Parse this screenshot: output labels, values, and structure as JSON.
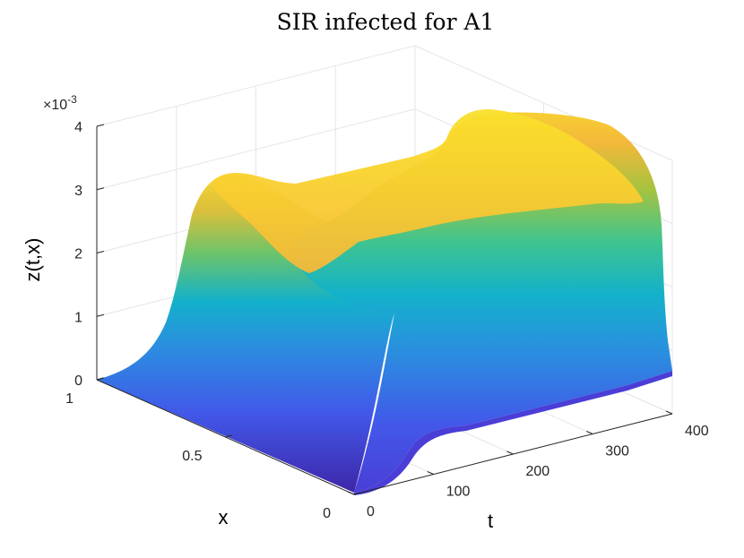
{
  "chart_data": {
    "type": "surface",
    "title": "SIR infected for A1",
    "xlabel": "t",
    "ylabel": "x",
    "zlabel": "z(t,x)",
    "z_exponent": "×10",
    "z_exponent_power": "-3",
    "t_range": [
      0,
      400
    ],
    "x_range": [
      0,
      1
    ],
    "z_range": [
      0,
      0.004
    ],
    "t_ticks": [
      "0",
      "100",
      "200",
      "300",
      "400"
    ],
    "x_ticks": [
      "0",
      "0.5",
      "1"
    ],
    "z_ticks": [
      "0",
      "1",
      "2",
      "3",
      "4"
    ],
    "z_tick_values": [
      0,
      0.001,
      0.002,
      0.003,
      0.004
    ],
    "grid": true,
    "colormap": "parula",
    "colormap_stops": [
      "#3e26a8",
      "#4258e9",
      "#2c8ce0",
      "#13b1cb",
      "#3fc48f",
      "#a7c33f",
      "#f6b93b",
      "#f9e02b"
    ],
    "peak_z": 0.0037,
    "shape_profile_t": [
      0,
      100,
      150,
      200,
      250,
      300,
      350,
      400
    ],
    "shape_profile_z": [
      0.0001,
      0.0025,
      0.0031,
      0.0029,
      0.003,
      0.0032,
      0.0033,
      0.0018
    ]
  }
}
